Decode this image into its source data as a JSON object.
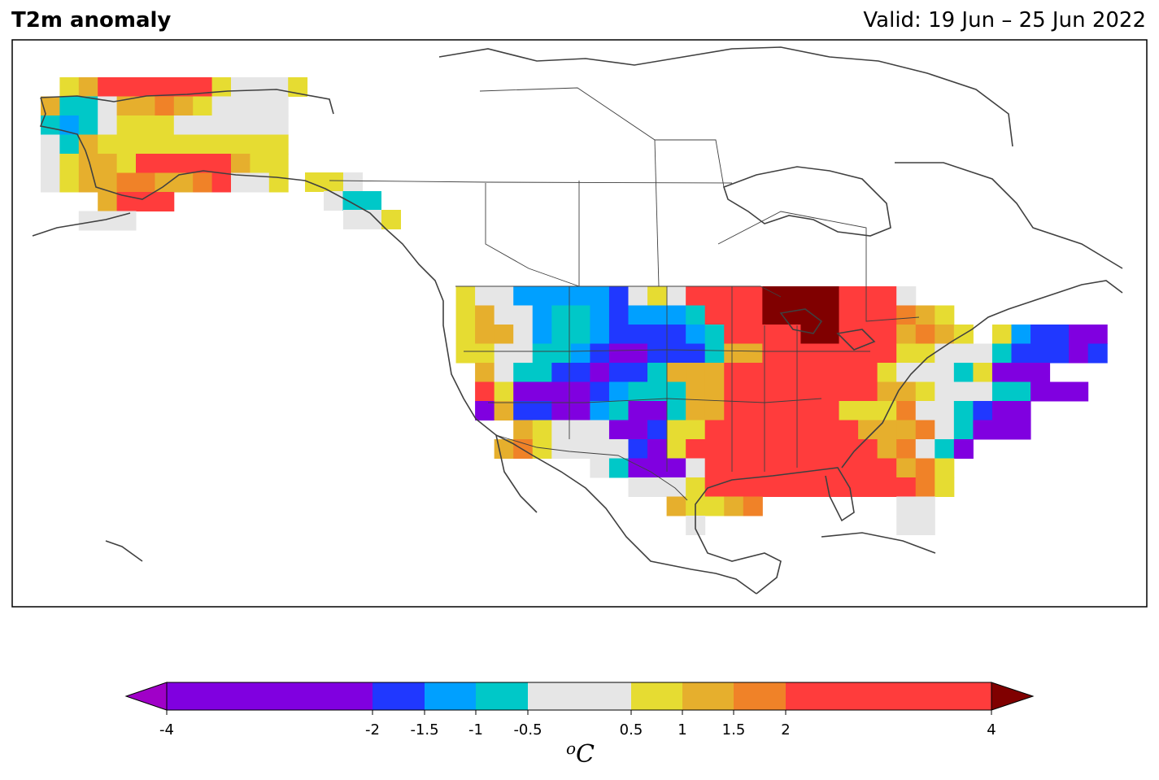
{
  "header": {
    "title": "T2m anomaly",
    "valid": "Valid: 19 Jun – 25 Jun 2022"
  },
  "colorbar": {
    "unit_sup": "o",
    "unit": "C",
    "ticks": [
      "-4",
      "-2",
      "-1.5",
      "-1",
      "-0.5",
      "0.5",
      "1",
      "1.5",
      "2",
      "4"
    ],
    "bins": [
      {
        "from": -4,
        "to": -2,
        "color": "#8000e0"
      },
      {
        "from": -2,
        "to": -1.5,
        "color": "#2038ff"
      },
      {
        "from": -1.5,
        "to": -1,
        "color": "#00a0ff"
      },
      {
        "from": -1,
        "to": -0.5,
        "color": "#00c8c8"
      },
      {
        "from": -0.5,
        "to": 0.5,
        "color": "#e6e6e6"
      },
      {
        "from": 0.5,
        "to": 1,
        "color": "#e6dc32"
      },
      {
        "from": 1,
        "to": 1.5,
        "color": "#e6af2d"
      },
      {
        "from": 1.5,
        "to": 2,
        "color": "#f08228"
      },
      {
        "from": 2,
        "to": 4,
        "color": "#ff3c3c"
      }
    ],
    "under_color": "#a000c8",
    "over_color": "#800000"
  },
  "map": {
    "region": "North America",
    "land_outline_color": "#404040"
  }
}
